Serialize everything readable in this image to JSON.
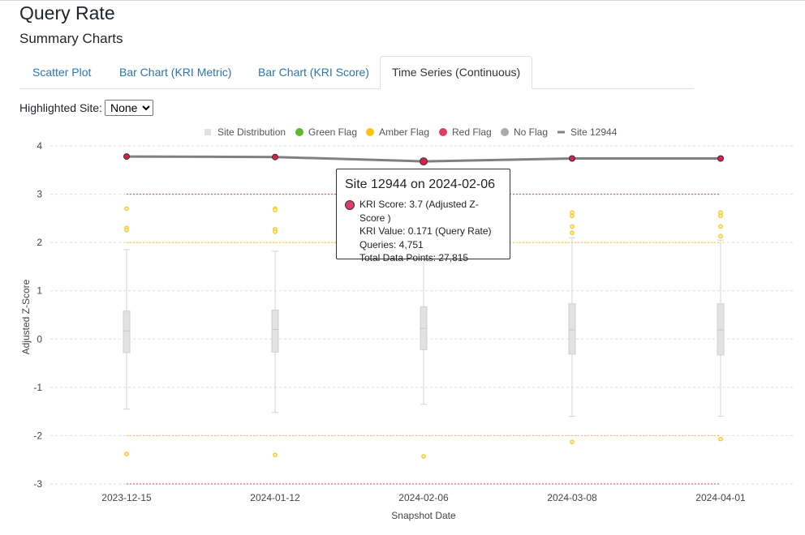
{
  "page": {
    "title": "Query Rate",
    "section": "Summary Charts"
  },
  "tabs": [
    {
      "label": "Scatter Plot",
      "active": false
    },
    {
      "label": "Bar Chart (KRI Metric)",
      "active": false
    },
    {
      "label": "Bar Chart (KRI Score)",
      "active": false
    },
    {
      "label": "Time Series (Continuous)",
      "active": true
    }
  ],
  "highlight": {
    "label": "Highlighted Site:",
    "selected": "None",
    "options": [
      "None"
    ]
  },
  "colors": {
    "green": "#5cb82e",
    "amber": "#ffc20e",
    "red": "#e23c66",
    "noflag": "#aaaaaa",
    "site_line": "#808080",
    "box": "#e2e2e2",
    "link": "#2a74b5"
  },
  "chart_data": {
    "type": "box",
    "xlabel": "Snapshot Date",
    "ylabel": "Adjusted Z-Score",
    "ylim": [
      -3,
      4
    ],
    "yticks": [
      "-3",
      "-2",
      "-1",
      "0",
      "1",
      "2",
      "3",
      "4"
    ],
    "categories": [
      "2023-12-15",
      "2024-01-12",
      "2024-02-06",
      "2024-03-08",
      "2024-04-01"
    ],
    "legend": [
      {
        "label": "Site Distribution",
        "shape": "box"
      },
      {
        "label": "Green Flag",
        "shape": "dot",
        "color": "#5cb82e"
      },
      {
        "label": "Amber Flag",
        "shape": "dot",
        "color": "#ffc20e"
      },
      {
        "label": "Red Flag",
        "shape": "dot",
        "color": "#e23c66"
      },
      {
        "label": "No Flag",
        "shape": "dot",
        "color": "#aaaaaa"
      },
      {
        "label": "Site 12944",
        "shape": "line"
      }
    ],
    "thresholds": [
      {
        "value": 3,
        "color": "#e23c66"
      },
      {
        "value": -3,
        "color": "#e23c66"
      },
      {
        "value": 2,
        "color": "#ffc20e"
      },
      {
        "value": -2,
        "color": "#ffc20e"
      }
    ],
    "boxes": [
      {
        "min": -1.45,
        "q1": -0.28,
        "median": 0.17,
        "q3": 0.58,
        "max": 1.85,
        "outliers": [
          2.7,
          2.3,
          2.26,
          -2.38
        ]
      },
      {
        "min": -1.52,
        "q1": -0.27,
        "median": 0.2,
        "q3": 0.6,
        "max": 1.82,
        "outliers": [
          2.7,
          2.67,
          2.27,
          2.22,
          -2.4
        ]
      },
      {
        "min": -1.35,
        "q1": -0.22,
        "median": 0.22,
        "q3": 0.67,
        "max": 1.9,
        "outliers": [
          2.14,
          -2.43
        ]
      },
      {
        "min": -1.6,
        "q1": -0.31,
        "median": 0.19,
        "q3": 0.73,
        "max": 2.1,
        "outliers": [
          2.62,
          2.55,
          2.33,
          2.2,
          -2.13
        ]
      },
      {
        "min": -1.6,
        "q1": -0.33,
        "median": 0.19,
        "q3": 0.73,
        "max": 2.05,
        "outliers": [
          2.62,
          2.55,
          2.33,
          2.13,
          -2.07
        ]
      }
    ],
    "site_series": {
      "name": "Site 12944",
      "values": [
        3.78,
        3.77,
        3.68,
        3.74,
        3.74
      ]
    }
  },
  "tooltip": {
    "title": "Site 12944 on 2024-02-06",
    "lines": [
      "KRI Score: 3.7 (Adjusted Z-Score )",
      "KRI Value: 0.171 (Query Rate)",
      "Queries: 4,751",
      "Total Data Points: 27,815"
    ]
  }
}
